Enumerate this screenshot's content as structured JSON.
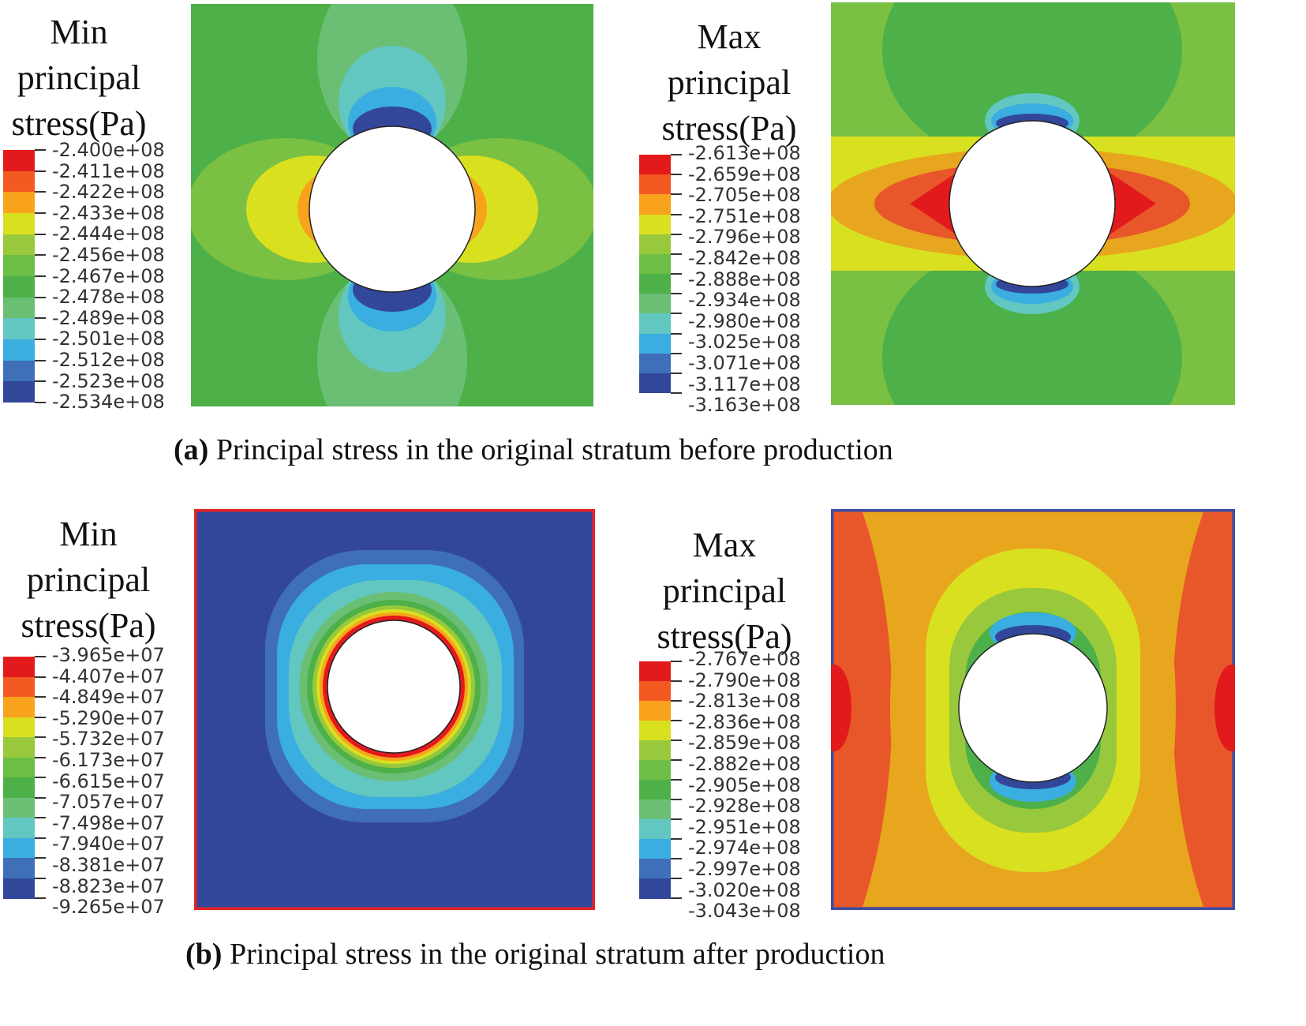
{
  "panel_a": {
    "caption_tag": "(a)",
    "caption_text": " Principal stress in the original stratum before production",
    "min_legend": {
      "title_lines": [
        "Min",
        "principal",
        "stress(Pa)"
      ],
      "values": [
        "-2.400e+08",
        "-2.411e+08",
        "-2.422e+08",
        "-2.433e+08",
        "-2.444e+08",
        "-2.456e+08",
        "-2.467e+08",
        "-2.478e+08",
        "-2.489e+08",
        "-2.501e+08",
        "-2.512e+08",
        "-2.523e+08",
        "-2.534e+08"
      ]
    },
    "max_legend": {
      "title_lines": [
        "Max",
        "principal",
        "stress(Pa)"
      ],
      "values": [
        "-2.613e+08",
        "-2.659e+08",
        "-2.705e+08",
        "-2.751e+08",
        "-2.796e+08",
        "-2.842e+08",
        "-2.888e+08",
        "-2.934e+08",
        "-2.980e+08",
        "-3.025e+08",
        "-3.071e+08",
        "-3.117e+08",
        "-3.163e+08"
      ]
    }
  },
  "panel_b": {
    "caption_tag": "(b)",
    "caption_text": " Principal stress in the original stratum after production",
    "min_legend": {
      "title_lines": [
        "Min",
        "principal",
        "stress(Pa)"
      ],
      "values": [
        "-3.965e+07",
        "-4.407e+07",
        "-4.849e+07",
        "-5.290e+07",
        "-5.732e+07",
        "-6.173e+07",
        "-6.615e+07",
        "-7.057e+07",
        "-7.498e+07",
        "-7.940e+07",
        "-8.381e+07",
        "-8.823e+07",
        "-9.265e+07"
      ]
    },
    "max_legend": {
      "title_lines": [
        "Max",
        "principal",
        "stress(Pa)"
      ],
      "values": [
        "-2.767e+08",
        "-2.790e+08",
        "-2.813e+08",
        "-2.836e+08",
        "-2.859e+08",
        "-2.882e+08",
        "-2.905e+08",
        "-2.928e+08",
        "-2.951e+08",
        "-2.974e+08",
        "-2.997e+08",
        "-3.020e+08",
        "-3.043e+08"
      ]
    }
  },
  "colors": {
    "scale": [
      "#e31a1c",
      "#f25a22",
      "#f9a21c",
      "#d8e020",
      "#98c83c",
      "#6cbe44",
      "#4db048",
      "#6abf74",
      "#62c7c0",
      "#3aaee0",
      "#3f6fb8",
      "#33479a"
    ],
    "frame_b_min": "#e52226",
    "frame_b_max": "#3b4ea2",
    "hole": "#ffffff"
  }
}
